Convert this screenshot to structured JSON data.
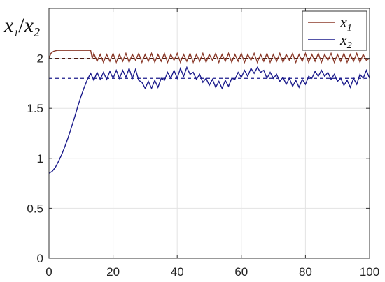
{
  "chart_data": {
    "type": "line",
    "title": "",
    "xlabel": "",
    "ylabel": {
      "base": "x",
      "sub1": "1",
      "slash": "/",
      "sub2": "2"
    },
    "xlim": [
      0,
      100
    ],
    "ylim": [
      0,
      2.5
    ],
    "x_ticks": [
      0,
      20,
      40,
      60,
      80,
      100
    ],
    "y_ticks": [
      0,
      0.5,
      1,
      1.5,
      2
    ],
    "y_tick_labels": [
      "0",
      "0.5",
      "1",
      "1.5",
      "2"
    ],
    "grid": true,
    "legend": {
      "position": "top-right",
      "entries": [
        {
          "base": "x",
          "sub": "1",
          "color": "#8b3a2a"
        },
        {
          "base": "x",
          "sub": "2",
          "color": "#1c1c8c"
        }
      ]
    },
    "reference_lines": [
      {
        "series": "x1",
        "y": 2.0,
        "style": "dashed",
        "color": "#4a1a10"
      },
      {
        "series": "x2",
        "y": 1.8,
        "style": "dashed",
        "color": "#1c1c8c"
      }
    ],
    "series": [
      {
        "key": "x1",
        "color": "#8b3a2a",
        "x": [
          0,
          0.6,
          1.4,
          2.5,
          4,
          13,
          13.5,
          14,
          15,
          16,
          17,
          18,
          19,
          20,
          21,
          22,
          23,
          24,
          25,
          26,
          27,
          28,
          29,
          30,
          31,
          32,
          33,
          34,
          35,
          36,
          37,
          38,
          39,
          40,
          41,
          42,
          43,
          44,
          45,
          46,
          47,
          48,
          49,
          50,
          51,
          52,
          53,
          54,
          55,
          56,
          57,
          58,
          59,
          60,
          61,
          62,
          63,
          64,
          65,
          66,
          67,
          68,
          69,
          70,
          71,
          72,
          73,
          74,
          75,
          76,
          77,
          78,
          79,
          80,
          81,
          82,
          83,
          84,
          85,
          86,
          87,
          88,
          89,
          90,
          91,
          92,
          93,
          94,
          95,
          96,
          97,
          98,
          99,
          100
        ],
        "y": [
          2.0,
          2.05,
          2.07,
          2.08,
          2.08,
          2.08,
          2.0,
          2.05,
          1.97,
          2.04,
          1.96,
          2.04,
          1.97,
          2.05,
          1.96,
          2.04,
          1.97,
          2.05,
          1.96,
          2.04,
          1.98,
          2.05,
          1.96,
          2.04,
          1.97,
          2.05,
          1.96,
          2.04,
          1.97,
          2.05,
          1.96,
          2.04,
          1.98,
          2.05,
          1.96,
          2.04,
          1.97,
          2.05,
          1.96,
          2.04,
          1.97,
          2.05,
          1.96,
          2.04,
          1.98,
          2.05,
          1.96,
          2.04,
          1.97,
          2.05,
          1.96,
          2.04,
          1.97,
          2.05,
          1.96,
          2.04,
          1.98,
          2.05,
          1.96,
          2.04,
          1.97,
          2.05,
          1.96,
          2.04,
          1.97,
          2.05,
          1.96,
          2.04,
          1.98,
          2.05,
          1.96,
          2.04,
          1.97,
          2.05,
          1.96,
          2.04,
          1.97,
          2.05,
          1.96,
          2.04,
          1.98,
          2.05,
          1.96,
          2.04,
          1.97,
          2.05,
          1.96,
          2.04,
          1.97,
          2.05,
          1.96,
          2.04,
          1.98,
          2.0
        ]
      },
      {
        "key": "x2",
        "color": "#1c1c8c",
        "x": [
          0,
          1,
          2,
          3,
          4,
          5,
          6,
          7,
          8,
          9,
          10,
          11,
          12,
          13,
          14,
          15,
          16,
          17,
          18,
          19,
          20,
          21,
          22,
          23,
          24,
          25,
          26,
          27,
          28,
          29,
          30,
          31,
          32,
          33,
          34,
          35,
          36,
          37,
          38,
          39,
          40,
          41,
          42,
          43,
          44,
          45,
          46,
          47,
          48,
          49,
          50,
          51,
          52,
          53,
          54,
          55,
          56,
          57,
          58,
          59,
          60,
          61,
          62,
          63,
          64,
          65,
          66,
          67,
          68,
          69,
          70,
          71,
          72,
          73,
          74,
          75,
          76,
          77,
          78,
          79,
          80,
          81,
          82,
          83,
          84,
          85,
          86,
          87,
          88,
          89,
          90,
          91,
          92,
          93,
          94,
          95,
          96,
          97,
          98,
          99,
          100
        ],
        "y": [
          0.85,
          0.87,
          0.91,
          0.97,
          1.04,
          1.12,
          1.21,
          1.31,
          1.41,
          1.52,
          1.62,
          1.71,
          1.79,
          1.85,
          1.78,
          1.86,
          1.79,
          1.86,
          1.79,
          1.87,
          1.8,
          1.88,
          1.8,
          1.88,
          1.81,
          1.9,
          1.8,
          1.89,
          1.78,
          1.76,
          1.7,
          1.77,
          1.7,
          1.78,
          1.71,
          1.8,
          1.78,
          1.86,
          1.8,
          1.88,
          1.8,
          1.9,
          1.82,
          1.91,
          1.84,
          1.86,
          1.79,
          1.84,
          1.76,
          1.8,
          1.73,
          1.79,
          1.71,
          1.77,
          1.7,
          1.78,
          1.72,
          1.8,
          1.79,
          1.86,
          1.81,
          1.88,
          1.82,
          1.9,
          1.85,
          1.91,
          1.86,
          1.88,
          1.8,
          1.86,
          1.8,
          1.84,
          1.77,
          1.81,
          1.74,
          1.8,
          1.72,
          1.78,
          1.71,
          1.79,
          1.74,
          1.82,
          1.8,
          1.87,
          1.82,
          1.88,
          1.82,
          1.86,
          1.79,
          1.84,
          1.77,
          1.8,
          1.73,
          1.78,
          1.71,
          1.8,
          1.74,
          1.84,
          1.8,
          1.88,
          1.8
        ]
      }
    ]
  }
}
